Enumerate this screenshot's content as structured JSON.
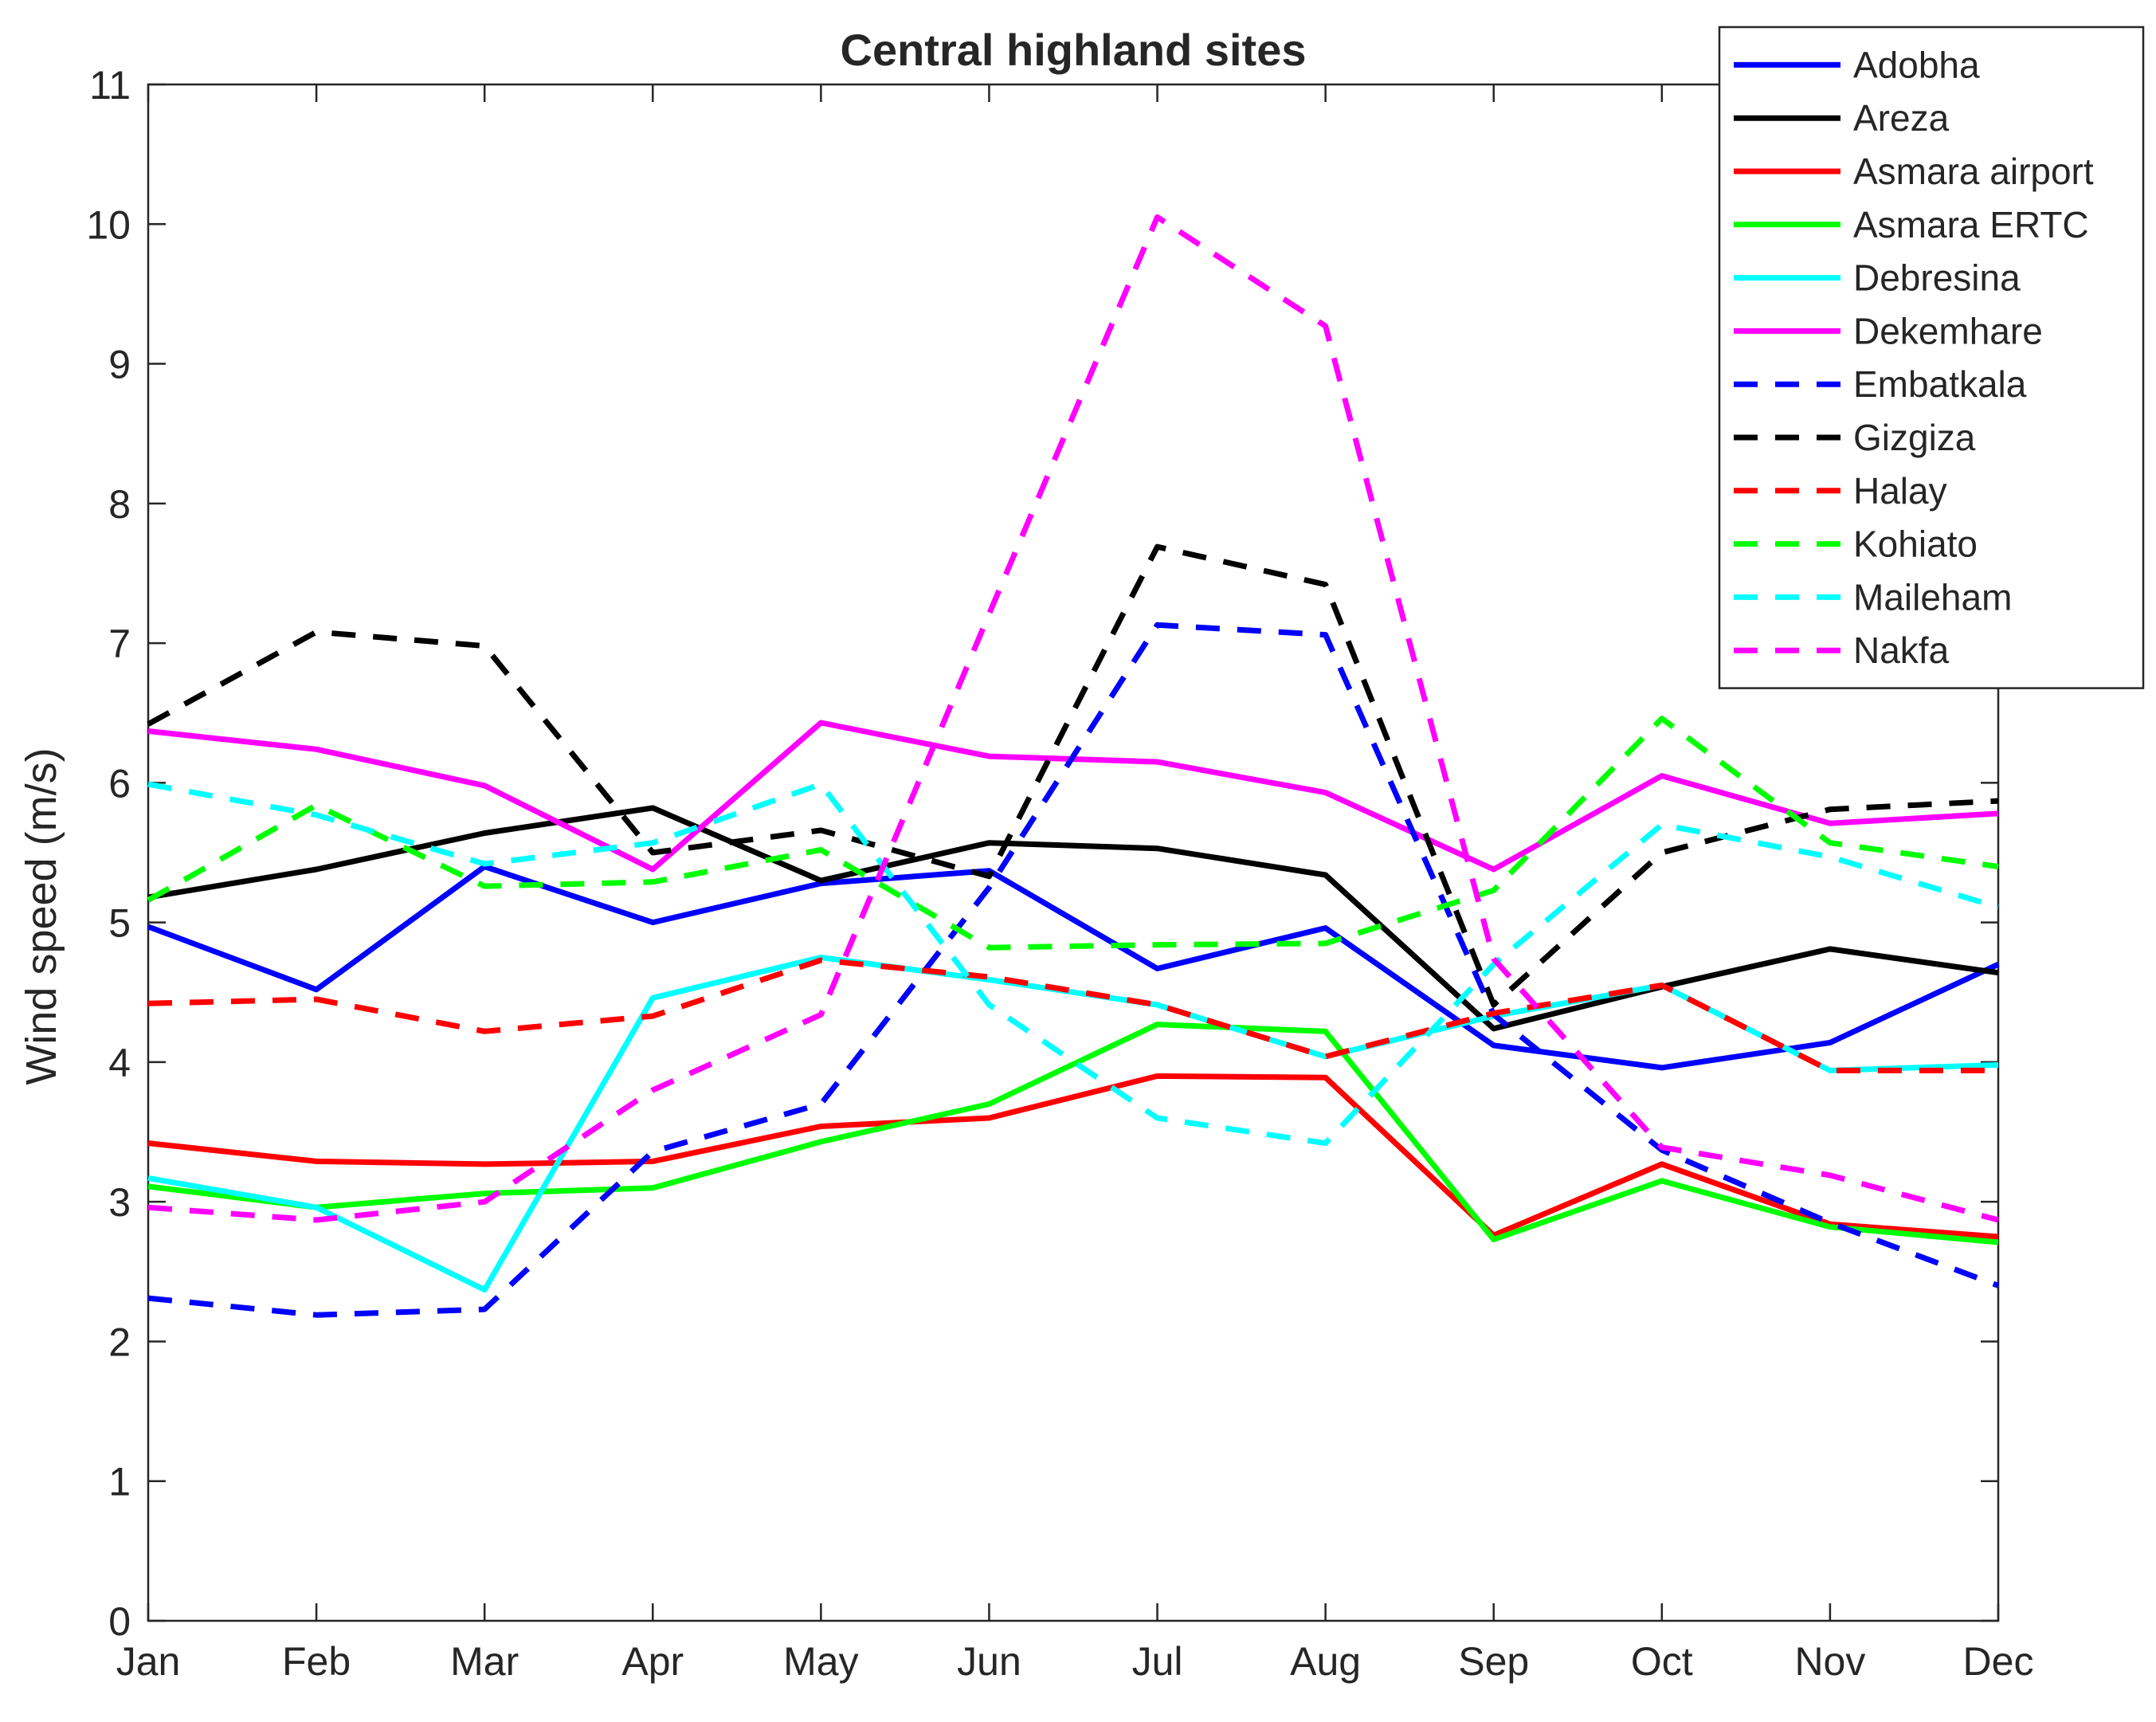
{
  "chart_data": {
    "type": "line",
    "title": "Central highland sites",
    "xlabel": "",
    "ylabel": "Wind speed (m/s)",
    "categories": [
      "Jan",
      "Feb",
      "Mar",
      "Apr",
      "May",
      "Jun",
      "Jul",
      "Aug",
      "Sep",
      "Oct",
      "Nov",
      "Dec"
    ],
    "ylim": [
      0,
      11
    ],
    "yticks": [
      0,
      1,
      2,
      3,
      4,
      5,
      6,
      7,
      8,
      9,
      10,
      11
    ],
    "grid": false,
    "legend_position": "top-right",
    "series": [
      {
        "name": "Adobha",
        "color": "#0000ff",
        "style": "solid",
        "values": [
          4.97,
          4.52,
          5.4,
          5.0,
          5.28,
          5.37,
          4.67,
          4.96,
          4.12,
          3.96,
          4.14,
          4.7
        ]
      },
      {
        "name": "Areza",
        "color": "#000000",
        "style": "solid",
        "values": [
          5.18,
          5.38,
          5.64,
          5.82,
          5.3,
          5.57,
          5.53,
          5.34,
          4.24,
          4.54,
          4.81,
          4.64
        ]
      },
      {
        "name": "Asmara airport",
        "color": "#ff0000",
        "style": "solid",
        "values": [
          3.42,
          3.29,
          3.27,
          3.29,
          3.54,
          3.6,
          3.9,
          3.89,
          2.76,
          3.27,
          2.84,
          2.75
        ]
      },
      {
        "name": "Asmara ERTC",
        "color": "#00ff00",
        "style": "solid",
        "values": [
          3.11,
          2.96,
          3.06,
          3.1,
          3.43,
          3.7,
          4.27,
          4.22,
          2.73,
          3.15,
          2.82,
          2.71
        ]
      },
      {
        "name": "Debresina",
        "color": "#00ffff",
        "style": "solid",
        "values": [
          3.17,
          2.96,
          2.37,
          4.46,
          4.75,
          4.59,
          4.41,
          4.04,
          4.33,
          4.55,
          3.94,
          3.98
        ]
      },
      {
        "name": "Dekemhare",
        "color": "#ff00ff",
        "style": "solid",
        "values": [
          6.37,
          6.24,
          5.98,
          5.38,
          6.43,
          6.19,
          6.15,
          5.93,
          5.38,
          6.05,
          5.71,
          5.78
        ]
      },
      {
        "name": "Embatkala",
        "color": "#0000ff",
        "style": "dashed",
        "values": [
          2.31,
          2.19,
          2.23,
          3.36,
          3.7,
          5.25,
          7.13,
          7.06,
          4.34,
          3.37,
          2.85,
          2.4
        ]
      },
      {
        "name": "Gizgiza",
        "color": "#000000",
        "style": "dashed",
        "values": [
          6.42,
          7.08,
          6.98,
          5.5,
          5.66,
          5.33,
          7.69,
          7.42,
          4.41,
          5.5,
          5.81,
          5.87
        ]
      },
      {
        "name": "Halay",
        "color": "#ff0000",
        "style": "dashed",
        "values": [
          4.42,
          4.45,
          4.22,
          4.33,
          4.73,
          4.61,
          4.41,
          4.04,
          4.35,
          4.55,
          3.94,
          3.94
        ]
      },
      {
        "name": "Kohiato",
        "color": "#00ff00",
        "style": "dashed",
        "values": [
          5.16,
          5.84,
          5.26,
          5.29,
          5.52,
          4.82,
          4.84,
          4.85,
          5.23,
          6.46,
          5.57,
          5.4
        ]
      },
      {
        "name": "Maileham",
        "color": "#00ffff",
        "style": "dashed",
        "values": [
          5.99,
          5.77,
          5.42,
          5.57,
          5.99,
          4.41,
          3.6,
          3.42,
          4.7,
          5.7,
          5.47,
          5.11
        ]
      },
      {
        "name": "Nakfa",
        "color": "#ff00ff",
        "style": "dashed",
        "values": [
          2.96,
          2.87,
          3.0,
          3.8,
          4.34,
          7.21,
          10.05,
          9.27,
          4.74,
          3.39,
          3.19,
          2.87
        ]
      }
    ]
  }
}
